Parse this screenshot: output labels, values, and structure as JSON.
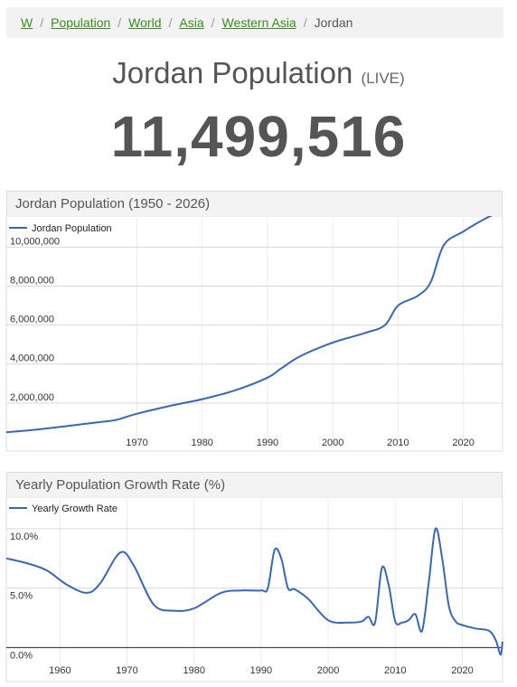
{
  "breadcrumb": {
    "items": [
      "W",
      "Population",
      "World",
      "Asia",
      "Western Asia"
    ],
    "current": "Jordan",
    "separator": "/"
  },
  "header": {
    "title": "Jordan Population",
    "live_label": "(LIVE)"
  },
  "counter": {
    "value": "11,499,516"
  },
  "colors": {
    "line": "#3a66b8",
    "link": "#3d8b1e",
    "grid": "#d9d9d9"
  },
  "chart_data": [
    {
      "type": "line",
      "title": "Jordan Population (1950 - 2026)",
      "legend": {
        "position": "top-left",
        "label": "Jordan Population"
      },
      "xlim": [
        1950,
        2026
      ],
      "x_ticks": [
        1970,
        1980,
        1990,
        2000,
        2010,
        2020
      ],
      "ylim": [
        0,
        11500000
      ],
      "y_ticks": [
        2000000,
        4000000,
        6000000,
        8000000,
        10000000
      ],
      "y_tick_labels": [
        "2,000,000",
        "4,000,000",
        "6,000,000",
        "8,000,000",
        "10,000,000"
      ],
      "grid": true,
      "series": [
        {
          "name": "Jordan Population",
          "x": [
            1950,
            1955,
            1960,
            1965,
            1967,
            1970,
            1975,
            1980,
            1985,
            1990,
            1992,
            1995,
            2000,
            2005,
            2008,
            2010,
            2013,
            2015,
            2017,
            2020,
            2023,
            2025,
            2026
          ],
          "y": [
            500000,
            650000,
            850000,
            1050000,
            1150000,
            1450000,
            1850000,
            2200000,
            2650000,
            3300000,
            3750000,
            4400000,
            5100000,
            5600000,
            6000000,
            7000000,
            7500000,
            8200000,
            10100000,
            10800000,
            11400000,
            11700000,
            11700000
          ]
        }
      ]
    },
    {
      "type": "line",
      "title": "Yearly Population Growth Rate (%)",
      "legend": {
        "position": "top-left",
        "label": "Yearly Growth Rate"
      },
      "xlim": [
        1952,
        2026
      ],
      "x_ticks": [
        1960,
        1970,
        1980,
        1990,
        2000,
        2010,
        2020
      ],
      "ylim": [
        -1.8,
        12.5
      ],
      "y_ticks": [
        0,
        5,
        10
      ],
      "y_tick_labels": [
        "0.0%",
        "5.0%",
        "10.0%"
      ],
      "grid": true,
      "series": [
        {
          "name": "Yearly Growth Rate",
          "x": [
            1952,
            1955,
            1958,
            1961,
            1964,
            1966,
            1969,
            1971,
            1974,
            1977,
            1980,
            1984,
            1987,
            1990,
            1991,
            1992,
            1993,
            1994,
            1995,
            1997,
            2000,
            2003,
            2005,
            2006,
            2007,
            2008,
            2009,
            2010,
            2011,
            2012,
            2013,
            2014,
            2015,
            2016,
            2017,
            2018,
            2019,
            2020,
            2022,
            2024,
            2025,
            2025.7,
            2026
          ],
          "y": [
            7.5,
            7.1,
            6.5,
            5.3,
            4.6,
            5.4,
            8.0,
            6.9,
            3.6,
            3.1,
            3.3,
            4.6,
            4.8,
            4.8,
            5.0,
            8.2,
            7.5,
            5.0,
            4.9,
            4.1,
            2.3,
            2.1,
            2.2,
            2.6,
            2.1,
            6.7,
            5.3,
            2.2,
            2.1,
            2.3,
            2.8,
            1.4,
            5.5,
            10.0,
            7.5,
            3.5,
            2.2,
            1.9,
            1.6,
            1.4,
            0.6,
            -0.6,
            0.5
          ]
        }
      ]
    }
  ]
}
